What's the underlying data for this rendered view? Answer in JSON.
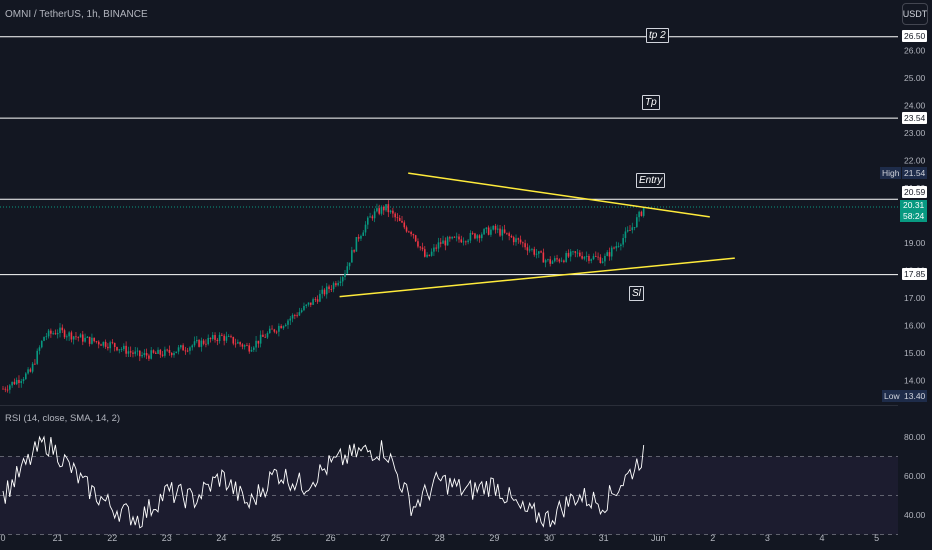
{
  "header": {
    "symbol_title": "OMNI / TetherUS, 1h, BINANCE",
    "currency_button": "USDT"
  },
  "indicator": {
    "rsi_title": "RSI (14, close, SMA, 14, 2)"
  },
  "price_scale": {
    "ticks": [
      "26.00",
      "25.00",
      "24.00",
      "23.00",
      "22.00",
      "21.00",
      "20.00",
      "19.00",
      "18.00",
      "17.00",
      "16.00",
      "15.00",
      "14.00"
    ],
    "level_tags": [
      "26.50",
      "23.54",
      "20.59",
      "17.85"
    ],
    "high_label": "High",
    "high_value": "21.54",
    "low_label": "Low",
    "low_value": "13.40",
    "last_price": "20.31",
    "countdown": "58:24"
  },
  "rsi_scale": {
    "ticks": [
      "80.00",
      "60.00",
      "40.00"
    ]
  },
  "time_axis": {
    "labels": [
      "0",
      "21",
      "22",
      "23",
      "24",
      "25",
      "26",
      "27",
      "28",
      "29",
      "30",
      "31",
      "Jun",
      "2",
      "3",
      "4",
      "5"
    ]
  },
  "annotations": {
    "tp2": "tp 2",
    "tp": "Tp",
    "entry": "Entry",
    "sl": "Sl"
  },
  "colors": {
    "background": "#131722",
    "up_candle": "#089981",
    "down_candle": "#f23645",
    "trendline": "#ffeb3b",
    "rsi_line": "#ffffff",
    "level_line": "#ffffff"
  },
  "chart_data": {
    "type": "candlestick",
    "price_range": [
      13.3,
      27.2
    ],
    "rsi_range": [
      28,
      84
    ],
    "horizontal_levels": [
      26.5,
      23.54,
      20.59,
      17.85
    ],
    "trendlines": [
      {
        "name": "resistance",
        "from": [
          "May 27",
          21.54
        ],
        "to": [
          "Jun 2",
          19.95
        ]
      },
      {
        "name": "support",
        "from": [
          "May 26",
          17.05
        ],
        "to": [
          "Jun 2",
          18.45
        ]
      }
    ],
    "price_path": [
      [
        "May 20 00:00",
        13.7
      ],
      [
        "May 20 12:00",
        14.3
      ],
      [
        "May 20 18:00",
        15.6
      ],
      [
        "May 21 00:00",
        15.8
      ],
      [
        "May 21 12:00",
        15.5
      ],
      [
        "May 22 00:00",
        15.3
      ],
      [
        "May 22 12:00",
        14.9
      ],
      [
        "May 23 00:00",
        15.0
      ],
      [
        "May 23 12:00",
        15.3
      ],
      [
        "May 24 00:00",
        15.6
      ],
      [
        "May 24 12:00",
        15.2
      ],
      [
        "May 25 00:00",
        15.9
      ],
      [
        "May 25 12:00",
        16.6
      ],
      [
        "May 26 00:00",
        17.4
      ],
      [
        "May 26 06:00",
        17.9
      ],
      [
        "May 26 12:00",
        19.2
      ],
      [
        "May 26 18:00",
        20.0
      ],
      [
        "May 27 00:00",
        20.3
      ],
      [
        "May 27 08:00",
        19.6
      ],
      [
        "May 27 12:00",
        19.4
      ],
      [
        "May 27 18:00",
        18.4
      ],
      [
        "May 28 00:00",
        19.0
      ],
      [
        "May 28 12:00",
        19.2
      ],
      [
        "May 29 00:00",
        19.5
      ],
      [
        "May 29 12:00",
        19.0
      ],
      [
        "May 30 00:00",
        18.3
      ],
      [
        "May 30 12:00",
        18.6
      ],
      [
        "May 31 00:00",
        18.4
      ],
      [
        "May 31 12:00",
        19.5
      ],
      [
        "May 31 18:00",
        20.31
      ]
    ],
    "rsi_path": [
      [
        "May 20 00:00",
        50
      ],
      [
        "May 20 18:00",
        78
      ],
      [
        "May 21 00:00",
        72
      ],
      [
        "May 21 12:00",
        55
      ],
      [
        "May 22 00:00",
        44
      ],
      [
        "May 22 12:00",
        38
      ],
      [
        "May 23 00:00",
        52
      ],
      [
        "May 23 12:00",
        48
      ],
      [
        "May 24 00:00",
        60
      ],
      [
        "May 24 12:00",
        45
      ],
      [
        "May 25 00:00",
        62
      ],
      [
        "May 25 12:00",
        55
      ],
      [
        "May 26 00:00",
        66
      ],
      [
        "May 26 12:00",
        72
      ],
      [
        "May 27 00:00",
        74
      ],
      [
        "May 27 12:00",
        44
      ],
      [
        "May 28 00:00",
        58
      ],
      [
        "May 28 12:00",
        52
      ],
      [
        "May 29 00:00",
        56
      ],
      [
        "May 29 12:00",
        42
      ],
      [
        "May 30 00:00",
        38
      ],
      [
        "May 30 12:00",
        50
      ],
      [
        "May 31 00:00",
        46
      ],
      [
        "May 31 12:00",
        62
      ],
      [
        "May 31 18:00",
        72
      ]
    ]
  }
}
